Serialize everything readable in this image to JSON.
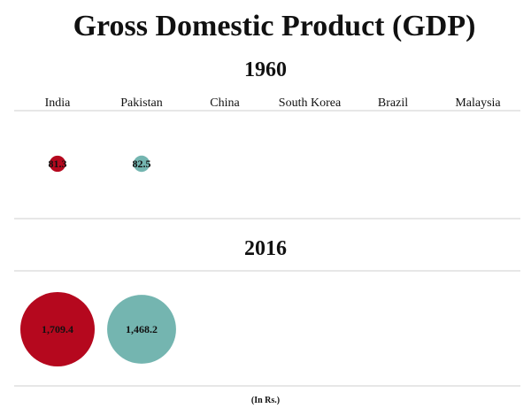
{
  "chart_data": {
    "type": "bubble",
    "title": "Gross Domestic Product (GDP)",
    "unit_label": "(In Rs.)",
    "categories": [
      "India",
      "Pakistan",
      "China",
      "South Korea",
      "Brazil",
      "Malaysia"
    ],
    "panels": [
      {
        "year": "1960",
        "values": [
          81.3,
          82.5,
          null,
          null,
          null,
          null
        ],
        "labels": [
          "81.3",
          "82.5",
          "",
          "",
          "",
          ""
        ]
      },
      {
        "year": "2016",
        "values": [
          1709.4,
          1468.2,
          null,
          null,
          null,
          null
        ],
        "labels": [
          "1,709.4",
          "1,468.2",
          "",
          "",
          "",
          ""
        ]
      }
    ],
    "colors": [
      "#b5081e",
      "#74b5b0",
      "#cccccc",
      "#cccccc",
      "#cccccc",
      "#cccccc"
    ]
  }
}
